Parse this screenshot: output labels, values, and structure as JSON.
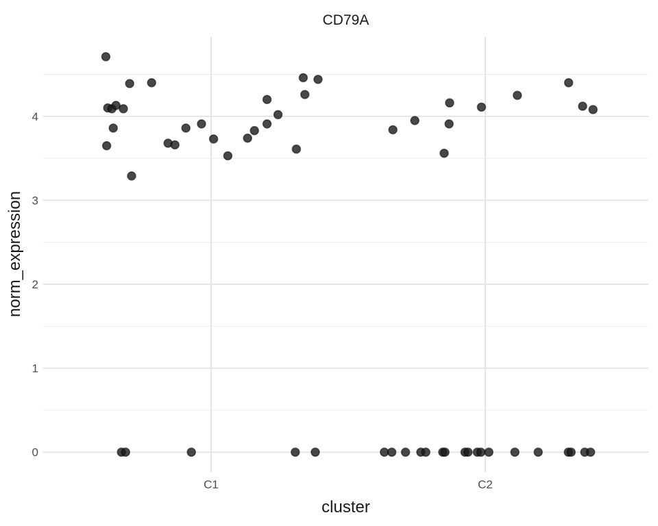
{
  "chart_data": {
    "type": "scatter",
    "title": "CD79A",
    "xlabel": "cluster",
    "ylabel": "norm_expression",
    "x_categories": [
      {
        "pos": 1,
        "label": "C1"
      },
      {
        "pos": 2,
        "label": "C2"
      }
    ],
    "y_major_ticks": [
      0,
      1,
      2,
      3,
      4
    ],
    "y_minor_ticks": [
      0.5,
      1.5,
      2.5,
      3.5,
      4.5
    ],
    "xlim": [
      0.3875,
      2.595
    ],
    "ylim": [
      -0.235,
      4.945
    ],
    "legend": "none",
    "grid": "horizontal major+minor, vertical major at categories",
    "colors": {
      "point_fill": "#1a1a1a",
      "point_stroke": "#000000",
      "grid_major": "#e5e5e5",
      "grid_minor": "#f1f1f1",
      "tick_label": "#4d4d4d",
      "title_text": "#1a1a1a",
      "background": "#ffffff"
    },
    "point_opacity": 0.8,
    "point_radius_px": 6,
    "points": [
      {
        "x": 0.616,
        "y": 4.71
      },
      {
        "x": 0.703,
        "y": 4.39
      },
      {
        "x": 0.783,
        "y": 4.4
      },
      {
        "x": 0.623,
        "y": 4.1
      },
      {
        "x": 0.638,
        "y": 4.09
      },
      {
        "x": 0.653,
        "y": 4.13
      },
      {
        "x": 0.68,
        "y": 4.09
      },
      {
        "x": 0.643,
        "y": 3.86
      },
      {
        "x": 0.619,
        "y": 3.65
      },
      {
        "x": 0.71,
        "y": 3.29
      },
      {
        "x": 0.843,
        "y": 3.68
      },
      {
        "x": 0.868,
        "y": 3.66
      },
      {
        "x": 0.908,
        "y": 3.86
      },
      {
        "x": 0.965,
        "y": 3.91
      },
      {
        "x": 1.009,
        "y": 3.73
      },
      {
        "x": 1.061,
        "y": 3.53
      },
      {
        "x": 1.133,
        "y": 3.74
      },
      {
        "x": 1.158,
        "y": 3.83
      },
      {
        "x": 1.204,
        "y": 3.91
      },
      {
        "x": 1.204,
        "y": 4.2
      },
      {
        "x": 1.244,
        "y": 4.02
      },
      {
        "x": 1.311,
        "y": 3.61
      },
      {
        "x": 1.336,
        "y": 4.46
      },
      {
        "x": 1.342,
        "y": 4.26
      },
      {
        "x": 1.39,
        "y": 4.44
      },
      {
        "x": 0.673,
        "y": 0
      },
      {
        "x": 0.688,
        "y": 0
      },
      {
        "x": 0.928,
        "y": 0
      },
      {
        "x": 1.307,
        "y": 0
      },
      {
        "x": 1.38,
        "y": 0
      },
      {
        "x": 1.663,
        "y": 3.84
      },
      {
        "x": 1.743,
        "y": 3.95
      },
      {
        "x": 1.85,
        "y": 3.56
      },
      {
        "x": 1.868,
        "y": 3.91
      },
      {
        "x": 1.87,
        "y": 4.16
      },
      {
        "x": 1.986,
        "y": 4.11
      },
      {
        "x": 2.117,
        "y": 4.25
      },
      {
        "x": 2.304,
        "y": 4.4
      },
      {
        "x": 2.355,
        "y": 4.12
      },
      {
        "x": 2.393,
        "y": 4.08
      },
      {
        "x": 1.632,
        "y": 0
      },
      {
        "x": 1.659,
        "y": 0
      },
      {
        "x": 1.709,
        "y": 0
      },
      {
        "x": 1.765,
        "y": 0
      },
      {
        "x": 1.783,
        "y": 0
      },
      {
        "x": 1.845,
        "y": 0
      },
      {
        "x": 1.853,
        "y": 0
      },
      {
        "x": 1.926,
        "y": 0
      },
      {
        "x": 1.937,
        "y": 0
      },
      {
        "x": 1.971,
        "y": 0
      },
      {
        "x": 1.984,
        "y": 0
      },
      {
        "x": 2.013,
        "y": 0
      },
      {
        "x": 2.108,
        "y": 0
      },
      {
        "x": 2.193,
        "y": 0
      },
      {
        "x": 2.303,
        "y": 0
      },
      {
        "x": 2.313,
        "y": 0
      },
      {
        "x": 2.363,
        "y": 0
      },
      {
        "x": 2.384,
        "y": 0
      }
    ]
  }
}
